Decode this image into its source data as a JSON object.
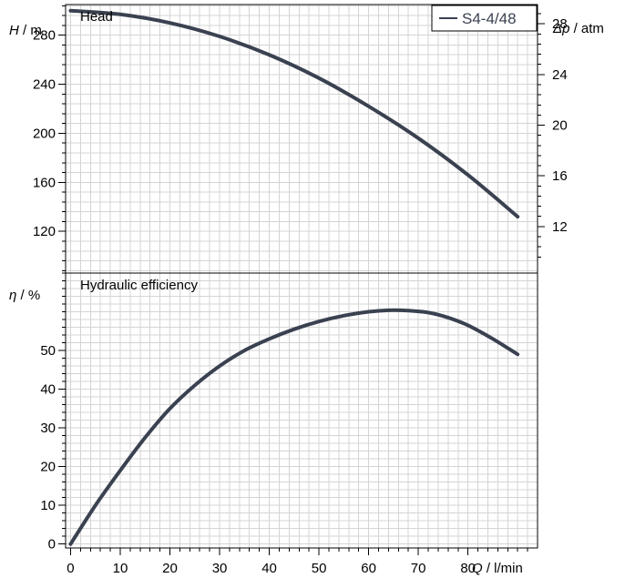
{
  "chart_data": [
    {
      "type": "line",
      "panel": "top",
      "title": "Head",
      "ylabel_var": "H",
      "ylabel_unit": " / m",
      "ylabel2_var": "Δp",
      "ylabel2_unit": " / atm",
      "xlim": [
        -1,
        94
      ],
      "ylim": [
        86,
        305
      ],
      "y_ticks": [
        120,
        160,
        200,
        240,
        280
      ],
      "y2_ticks": [
        12,
        16,
        20,
        24,
        28
      ],
      "y2_per_y": 0.0968,
      "grid": true,
      "legend_position": "top-right",
      "series": [
        {
          "name": "S4-4/48",
          "color": "#3a4150",
          "x": [
            0,
            10,
            20,
            30,
            40,
            50,
            60,
            70,
            80,
            90
          ],
          "y": [
            300,
            297,
            290,
            279,
            264,
            245,
            222,
            196,
            166,
            132
          ]
        }
      ]
    },
    {
      "type": "line",
      "panel": "bottom",
      "title": "Hydraulic efficiency",
      "ylabel_var": "η",
      "ylabel_unit": " / %",
      "xlabel_var": "Q",
      "xlabel_unit": " / l/min",
      "xlim": [
        -1,
        94
      ],
      "ylim": [
        -1,
        70
      ],
      "x_ticks": [
        0,
        10,
        20,
        30,
        40,
        50,
        60,
        70,
        80
      ],
      "y_ticks": [
        0,
        10,
        20,
        30,
        40,
        50
      ],
      "grid": true,
      "series": [
        {
          "name": "S4-4/48",
          "color": "#3a4150",
          "x": [
            0,
            5,
            10,
            15,
            20,
            25,
            30,
            35,
            40,
            45,
            50,
            55,
            60,
            64,
            68,
            72,
            76,
            80,
            85,
            90
          ],
          "y": [
            0,
            10,
            19,
            27.5,
            35,
            41,
            46,
            50,
            53,
            55.5,
            57.5,
            59,
            60,
            60.4,
            60.3,
            59.8,
            58.5,
            56.5,
            53,
            49
          ]
        }
      ]
    }
  ]
}
